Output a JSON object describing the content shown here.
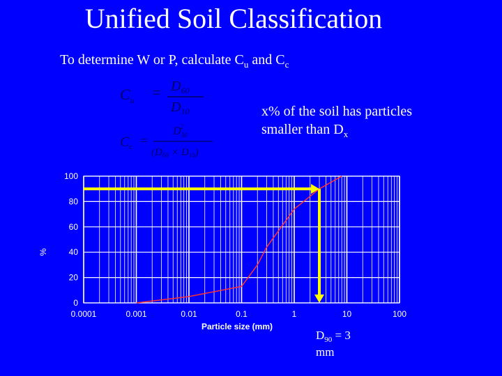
{
  "slide": {
    "title": "Unified Soil Classification",
    "subtitle": [
      "To determine W or P, calculate C",
      "u",
      " and C",
      "c"
    ],
    "note_line1": "x% of the soil has particles",
    "note_line2": [
      "smaller than D",
      "x"
    ],
    "formulas": {
      "cu": {
        "lhs": "C",
        "lhs_sub": "u",
        "eq": "=",
        "num": "D",
        "num_sub": "60",
        "den": "D",
        "den_sub": "10"
      },
      "cc": {
        "lhs": "C",
        "lhs_sub": "c",
        "eq": "=",
        "num": "D",
        "num_sub": "30",
        "num_sup": "2",
        "den_open": "(D",
        "den_sub1": "60",
        "times": "×",
        "den2": "D",
        "den_sub2": "10",
        "den_close": ")"
      }
    }
  },
  "chart_data": {
    "type": "line",
    "xlabel": "Particle size (mm)",
    "ylabel": "%",
    "x": [
      0.001,
      0.01,
      0.1,
      0.2,
      0.3,
      1,
      3,
      8
    ],
    "values": [
      0,
      5,
      13,
      30,
      44,
      74,
      90,
      100
    ],
    "color": "#ff3333",
    "log_x": true,
    "grid": true,
    "xlim": [
      0.0001,
      100
    ],
    "xticks": [
      0.0001,
      0.001,
      0.01,
      0.1,
      1,
      10,
      100
    ],
    "ylim": [
      0,
      100
    ],
    "yticks": [
      0,
      20,
      40,
      60,
      80,
      100
    ],
    "d90": {
      "percent": 90,
      "size": 3,
      "arrow_color": "#ffff00",
      "label": [
        "D",
        "90",
        " = 3"
      ],
      "unit": "mm"
    }
  }
}
